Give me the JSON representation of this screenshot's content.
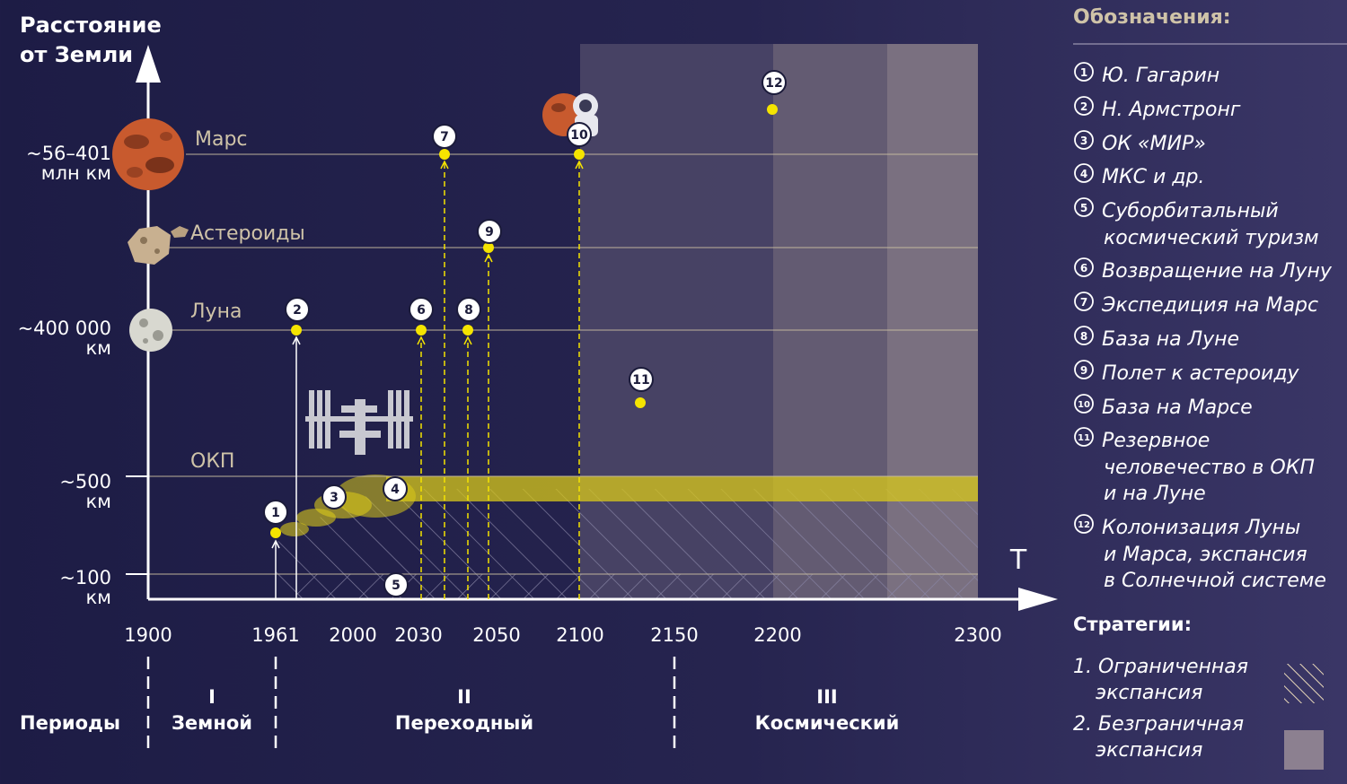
{
  "axes": {
    "y_title": [
      "Расстояние",
      "от Земли"
    ],
    "x_title": "T",
    "x_ticks": [
      "1900",
      "1961",
      "2000",
      "2030",
      "2050",
      "2100",
      "2150",
      "2200",
      "2300"
    ]
  },
  "levels": [
    {
      "name": "Марс",
      "value": [
        "~56–401",
        "млн км"
      ]
    },
    {
      "name": "Астероиды",
      "value": []
    },
    {
      "name": "Луна",
      "value": [
        "~400 000",
        "км"
      ]
    },
    {
      "name": "ОКП",
      "value": [
        "~500",
        "км"
      ]
    },
    {
      "name": "",
      "value": [
        "~100",
        "км"
      ]
    }
  ],
  "periods": {
    "label": "Периоды",
    "items": [
      {
        "num": "I",
        "name": "Земной"
      },
      {
        "num": "II",
        "name": "Переходный"
      },
      {
        "num": "III",
        "name": "Космический"
      }
    ]
  },
  "events": [
    "1",
    "2",
    "3",
    "4",
    "5",
    "6",
    "7",
    "8",
    "9",
    "10",
    "11",
    "12"
  ],
  "legend": {
    "title": "Обозначения:",
    "items": [
      {
        "num": "1",
        "lines": [
          "Ю. Гагарин"
        ]
      },
      {
        "num": "2",
        "lines": [
          "Н. Армстронг"
        ]
      },
      {
        "num": "3",
        "lines": [
          "ОК «МИР»"
        ]
      },
      {
        "num": "4",
        "lines": [
          "МКС и др."
        ]
      },
      {
        "num": "5",
        "lines": [
          "Суборбитальный",
          "космический туризм"
        ]
      },
      {
        "num": "6",
        "lines": [
          "Возвращение на Луну"
        ]
      },
      {
        "num": "7",
        "lines": [
          "Экспедиция на Марс"
        ]
      },
      {
        "num": "8",
        "lines": [
          "База на Луне"
        ]
      },
      {
        "num": "9",
        "lines": [
          "Полет к астероиду"
        ]
      },
      {
        "num": "10",
        "lines": [
          "База на Марсе"
        ]
      },
      {
        "num": "11",
        "lines": [
          "Резервное",
          "человечество в ОКП",
          "и на Луне"
        ]
      },
      {
        "num": "12",
        "lines": [
          "Колонизация Луны",
          "и Марса, экспансия",
          "в Солнечной системе"
        ]
      }
    ],
    "strategies_title": "Стратегии:",
    "strategies": [
      {
        "lines": [
          "1. Ограниченная",
          "экспансия"
        ]
      },
      {
        "lines": [
          "2. Безграничная",
          "экспансия"
        ]
      }
    ]
  },
  "colors": {
    "accent_yellow": "#f5e400",
    "level_line": "#c8bca0",
    "shade": "#8c8090"
  }
}
